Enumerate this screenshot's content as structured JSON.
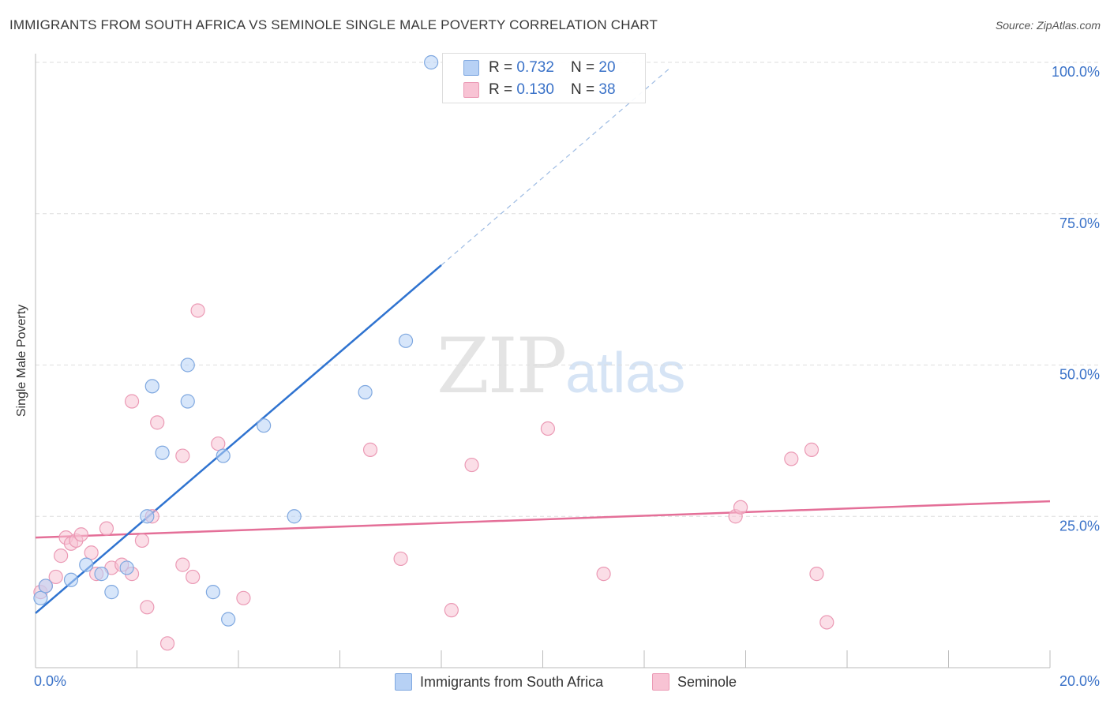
{
  "title": "IMMIGRANTS FROM SOUTH AFRICA VS SEMINOLE SINGLE MALE POVERTY CORRELATION CHART",
  "source": "Source: ZipAtlas.com",
  "watermark": {
    "zip": "ZIP",
    "atlas": "atlas"
  },
  "legend": {
    "r_label": "R = ",
    "n_label": "N = ",
    "series": [
      {
        "r": "0.732",
        "n": "20"
      },
      {
        "r": "0.130",
        "n": "38"
      }
    ]
  },
  "colors": {
    "blue_fill": "#b7d1f5",
    "blue_stroke": "#7fa8e0",
    "blue_line": "#2f73d0",
    "pink_fill": "#f8c3d4",
    "pink_stroke": "#eb9ab5",
    "pink_line": "#e46f98",
    "tick_label": "#3a72c8",
    "grid": "#dddddd"
  },
  "chart_data": {
    "type": "scatter",
    "title": "IMMIGRANTS FROM SOUTH AFRICA VS SEMINOLE SINGLE MALE POVERTY CORRELATION CHART",
    "xlabel": "",
    "ylabel": "Single Male Poverty",
    "xlim": [
      0,
      20
    ],
    "ylim": [
      0,
      100
    ],
    "x_tick_labels": [
      "0.0%",
      "20.0%"
    ],
    "y_tick_labels": [
      "25.0%",
      "50.0%",
      "75.0%",
      "100.0%"
    ],
    "y_ticks": [
      25,
      50,
      75,
      100
    ],
    "grid": true,
    "legend_position": "top-center",
    "series": [
      {
        "name": "Immigrants from South Africa",
        "r": 0.732,
        "n": 20,
        "points": [
          [
            0.1,
            11.5
          ],
          [
            0.2,
            13.5
          ],
          [
            0.7,
            14.5
          ],
          [
            1.0,
            17.0
          ],
          [
            1.3,
            15.5
          ],
          [
            1.5,
            12.5
          ],
          [
            1.8,
            16.5
          ],
          [
            2.2,
            25.0
          ],
          [
            2.3,
            46.5
          ],
          [
            2.5,
            35.5
          ],
          [
            3.0,
            44.0
          ],
          [
            3.0,
            50.0
          ],
          [
            3.5,
            12.5
          ],
          [
            3.7,
            35.0
          ],
          [
            3.8,
            8.0
          ],
          [
            4.5,
            40.0
          ],
          [
            5.1,
            25.0
          ],
          [
            6.5,
            45.5
          ],
          [
            7.3,
            54.0
          ],
          [
            7.8,
            100.0
          ]
        ],
        "trend": {
          "x0": 0,
          "y0": 9.0,
          "x1": 8.0,
          "y1": 66.5,
          "dashed_to_x": 12.5,
          "dashed_to_y": 99.0
        }
      },
      {
        "name": "Seminole",
        "r": 0.13,
        "n": 38,
        "points": [
          [
            0.1,
            12.5
          ],
          [
            0.2,
            13.5
          ],
          [
            0.4,
            15.0
          ],
          [
            0.5,
            18.5
          ],
          [
            0.6,
            21.5
          ],
          [
            0.7,
            20.5
          ],
          [
            0.8,
            21.0
          ],
          [
            0.9,
            22.0
          ],
          [
            1.1,
            19.0
          ],
          [
            1.2,
            15.5
          ],
          [
            1.4,
            23.0
          ],
          [
            1.5,
            16.5
          ],
          [
            1.7,
            17.0
          ],
          [
            1.9,
            15.5
          ],
          [
            1.9,
            44.0
          ],
          [
            2.1,
            21.0
          ],
          [
            2.2,
            10.0
          ],
          [
            2.3,
            25.0
          ],
          [
            2.4,
            40.5
          ],
          [
            2.6,
            4.0
          ],
          [
            2.9,
            35.0
          ],
          [
            2.9,
            17.0
          ],
          [
            3.1,
            15.0
          ],
          [
            3.2,
            59.0
          ],
          [
            3.6,
            37.0
          ],
          [
            4.1,
            11.5
          ],
          [
            6.6,
            36.0
          ],
          [
            7.2,
            18.0
          ],
          [
            8.2,
            9.5
          ],
          [
            8.6,
            33.5
          ],
          [
            10.1,
            39.5
          ],
          [
            11.2,
            15.5
          ],
          [
            13.8,
            25.0
          ],
          [
            13.9,
            26.5
          ],
          [
            14.9,
            34.5
          ],
          [
            15.3,
            36.0
          ],
          [
            15.4,
            15.5
          ],
          [
            15.6,
            7.5
          ]
        ],
        "trend": {
          "x0": 0,
          "y0": 21.5,
          "x1": 20,
          "y1": 27.5
        }
      }
    ]
  }
}
